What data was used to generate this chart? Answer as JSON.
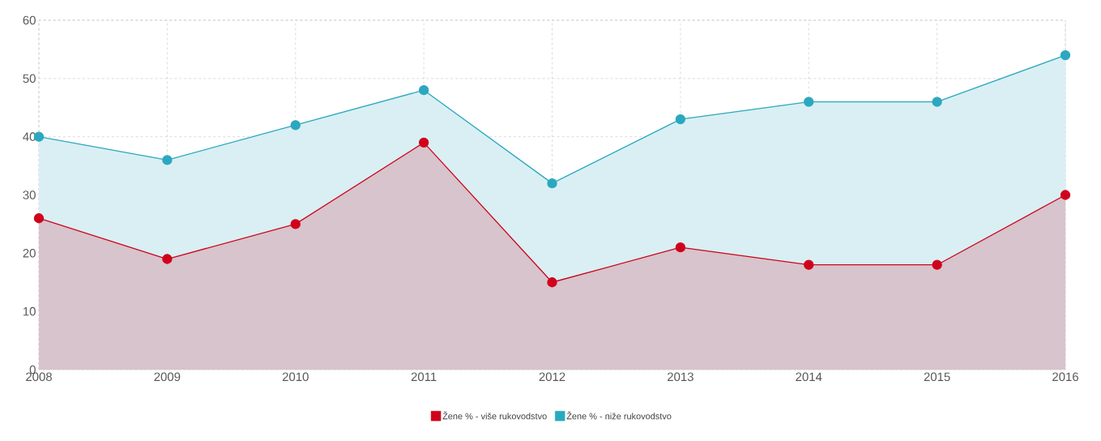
{
  "chart_data": {
    "type": "area",
    "x": [
      2008,
      2009,
      2010,
      2011,
      2012,
      2013,
      2014,
      2015,
      2016
    ],
    "series": [
      {
        "name": "Žene % - niže rukovodstvo",
        "color": "#2ba8bf",
        "values": [
          40,
          36,
          42,
          48,
          32,
          43,
          46,
          46,
          54
        ]
      },
      {
        "name": "Žene % - više rukovodstvo",
        "color": "#d0021b",
        "values": [
          26,
          19,
          25,
          39,
          15,
          21,
          18,
          18,
          30
        ]
      }
    ],
    "xlim": [
      2008,
      2016
    ],
    "xticks": [
      2008,
      2009,
      2010,
      2011,
      2012,
      2013,
      2014,
      2015,
      2016
    ],
    "ylim": [
      0,
      60
    ],
    "yticks": [
      0,
      10,
      20,
      30,
      40,
      50,
      60
    ],
    "grid": true,
    "legend": "bottom",
    "marker": "circle",
    "line_style": "solid"
  }
}
